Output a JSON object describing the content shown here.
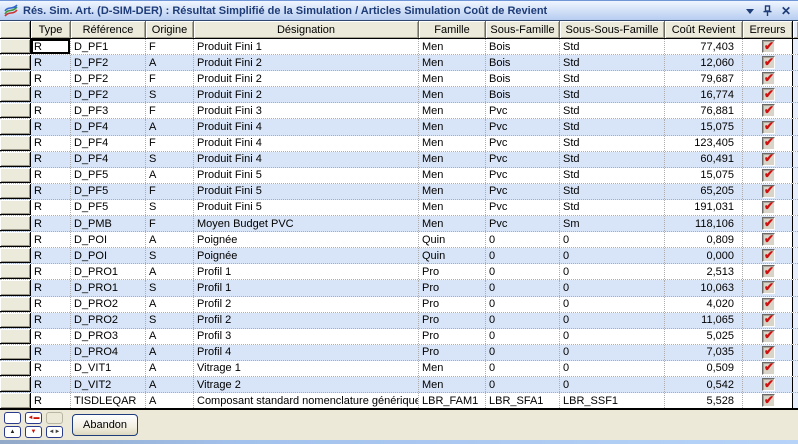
{
  "window": {
    "title": "Rés. Sim. Art. (D-SIM-DER) : Résultat Simplifié de la Simulation / Articles Simulation Coût de Revient",
    "titlebar_icons": [
      "simulation-chart-icon",
      "dropdown-arrow-icon",
      "pin-icon",
      "close-icon"
    ]
  },
  "icons": {
    "close_glyph": "✕",
    "error_check_glyph": "✔"
  },
  "colors": {
    "titlebar_text": "#1e3c78",
    "alt_row": "#d8e4f7",
    "header_bg": "#eceadb",
    "check_red": "#cf1211",
    "toolbar_bg": "#ece9d8"
  },
  "table": {
    "columns": [
      {
        "key": "type",
        "label": "Type"
      },
      {
        "key": "reference",
        "label": "Référence"
      },
      {
        "key": "origine",
        "label": "Origine"
      },
      {
        "key": "designation",
        "label": "Désignation"
      },
      {
        "key": "famille",
        "label": "Famille"
      },
      {
        "key": "sous_famille",
        "label": "Sous-Famille"
      },
      {
        "key": "sous_sous_famille",
        "label": "Sous-Sous-Famille"
      },
      {
        "key": "cout_revient",
        "label": "Coût Revient"
      },
      {
        "key": "erreurs",
        "label": "Erreurs"
      }
    ],
    "selection": {
      "row": 0,
      "column": "type"
    },
    "rows": [
      {
        "type": "R",
        "reference": "D_PF1",
        "origine": "F",
        "designation": "Produit Fini 1",
        "famille": "Men",
        "sous_famille": "Bois",
        "sous_sous_famille": "Std",
        "cout_revient": "77,403",
        "erreurs": true
      },
      {
        "type": "R",
        "reference": "D_PF2",
        "origine": "A",
        "designation": "Produit Fini 2",
        "famille": "Men",
        "sous_famille": "Bois",
        "sous_sous_famille": "Std",
        "cout_revient": "12,060",
        "erreurs": true
      },
      {
        "type": "R",
        "reference": "D_PF2",
        "origine": "F",
        "designation": "Produit Fini 2",
        "famille": "Men",
        "sous_famille": "Bois",
        "sous_sous_famille": "Std",
        "cout_revient": "79,687",
        "erreurs": true
      },
      {
        "type": "R",
        "reference": "D_PF2",
        "origine": "S",
        "designation": "Produit Fini 2",
        "famille": "Men",
        "sous_famille": "Bois",
        "sous_sous_famille": "Std",
        "cout_revient": "16,774",
        "erreurs": true
      },
      {
        "type": "R",
        "reference": "D_PF3",
        "origine": "F",
        "designation": "Produit Fini 3",
        "famille": "Men",
        "sous_famille": "Pvc",
        "sous_sous_famille": "Std",
        "cout_revient": "76,881",
        "erreurs": true
      },
      {
        "type": "R",
        "reference": "D_PF4",
        "origine": "A",
        "designation": "Produit Fini 4",
        "famille": "Men",
        "sous_famille": "Pvc",
        "sous_sous_famille": "Std",
        "cout_revient": "15,075",
        "erreurs": true
      },
      {
        "type": "R",
        "reference": "D_PF4",
        "origine": "F",
        "designation": "Produit Fini 4",
        "famille": "Men",
        "sous_famille": "Pvc",
        "sous_sous_famille": "Std",
        "cout_revient": "123,405",
        "erreurs": true
      },
      {
        "type": "R",
        "reference": "D_PF4",
        "origine": "S",
        "designation": "Produit Fini 4",
        "famille": "Men",
        "sous_famille": "Pvc",
        "sous_sous_famille": "Std",
        "cout_revient": "60,491",
        "erreurs": true
      },
      {
        "type": "R",
        "reference": "D_PF5",
        "origine": "A",
        "designation": "Produit Fini 5",
        "famille": "Men",
        "sous_famille": "Pvc",
        "sous_sous_famille": "Std",
        "cout_revient": "15,075",
        "erreurs": true
      },
      {
        "type": "R",
        "reference": "D_PF5",
        "origine": "F",
        "designation": "Produit Fini 5",
        "famille": "Men",
        "sous_famille": "Pvc",
        "sous_sous_famille": "Std",
        "cout_revient": "65,205",
        "erreurs": true
      },
      {
        "type": "R",
        "reference": "D_PF5",
        "origine": "S",
        "designation": "Produit Fini 5",
        "famille": "Men",
        "sous_famille": "Pvc",
        "sous_sous_famille": "Std",
        "cout_revient": "191,031",
        "erreurs": true
      },
      {
        "type": "R",
        "reference": "D_PMB",
        "origine": "F",
        "designation": "Moyen Budget PVC",
        "famille": "Men",
        "sous_famille": "Pvc",
        "sous_sous_famille": "Sm",
        "cout_revient": "118,106",
        "erreurs": true
      },
      {
        "type": "R",
        "reference": "D_POI",
        "origine": "A",
        "designation": "Poignée",
        "famille": "Quin",
        "sous_famille": "0",
        "sous_sous_famille": "0",
        "cout_revient": "0,809",
        "erreurs": true
      },
      {
        "type": "R",
        "reference": "D_POI",
        "origine": "S",
        "designation": "Poignée",
        "famille": "Quin",
        "sous_famille": "0",
        "sous_sous_famille": "0",
        "cout_revient": "0,000",
        "erreurs": true
      },
      {
        "type": "R",
        "reference": "D_PRO1",
        "origine": "A",
        "designation": "Profil 1",
        "famille": "Pro",
        "sous_famille": "0",
        "sous_sous_famille": "0",
        "cout_revient": "2,513",
        "erreurs": true
      },
      {
        "type": "R",
        "reference": "D_PRO1",
        "origine": "S",
        "designation": "Profil 1",
        "famille": "Pro",
        "sous_famille": "0",
        "sous_sous_famille": "0",
        "cout_revient": "10,063",
        "erreurs": true
      },
      {
        "type": "R",
        "reference": "D_PRO2",
        "origine": "A",
        "designation": "Profil 2",
        "famille": "Pro",
        "sous_famille": "0",
        "sous_sous_famille": "0",
        "cout_revient": "4,020",
        "erreurs": true
      },
      {
        "type": "R",
        "reference": "D_PRO2",
        "origine": "S",
        "designation": "Profil 2",
        "famille": "Pro",
        "sous_famille": "0",
        "sous_sous_famille": "0",
        "cout_revient": "11,065",
        "erreurs": true
      },
      {
        "type": "R",
        "reference": "D_PRO3",
        "origine": "A",
        "designation": "Profil 3",
        "famille": "Pro",
        "sous_famille": "0",
        "sous_sous_famille": "0",
        "cout_revient": "5,025",
        "erreurs": true
      },
      {
        "type": "R",
        "reference": "D_PRO4",
        "origine": "A",
        "designation": "Profil 4",
        "famille": "Pro",
        "sous_famille": "0",
        "sous_sous_famille": "0",
        "cout_revient": "7,035",
        "erreurs": true
      },
      {
        "type": "R",
        "reference": "D_VIT1",
        "origine": "A",
        "designation": "Vitrage 1",
        "famille": "Men",
        "sous_famille": "0",
        "sous_sous_famille": "0",
        "cout_revient": "0,509",
        "erreurs": true
      },
      {
        "type": "R",
        "reference": "D_VIT2",
        "origine": "A",
        "designation": "Vitrage 2",
        "famille": "Men",
        "sous_famille": "0",
        "sous_sous_famille": "0",
        "cout_revient": "0,542",
        "erreurs": true
      },
      {
        "type": "R",
        "reference": "TISDLEQAR",
        "origine": "A",
        "designation": "Composant standard nomenclature générique",
        "famille": "LBR_FAM1",
        "sous_famille": "LBR_SFA1",
        "sous_sous_famille": "LBR_SSF1",
        "cout_revient": "5,528",
        "erreurs": true
      }
    ]
  },
  "toolbar": {
    "abandon_label": "Abandon",
    "nav_buttons": [
      {
        "name": "nav-blank-button",
        "glyph": "",
        "color": "#333333",
        "disabled": false
      },
      {
        "name": "nav-red-left-arrow-button",
        "glyph": "◄▬",
        "color": "#cc1100",
        "disabled": false
      },
      {
        "name": "nav-disabled-button",
        "glyph": "",
        "color": "#333333",
        "disabled": true
      },
      {
        "name": "nav-up-arrow-button",
        "glyph": "▲",
        "color": "#222222",
        "disabled": false
      },
      {
        "name": "nav-red-down-arrow-button",
        "glyph": "▼",
        "color": "#cc1100",
        "disabled": false
      },
      {
        "name": "nav-collapse-button",
        "glyph": "◄►",
        "color": "#444444",
        "disabled": false
      }
    ]
  }
}
